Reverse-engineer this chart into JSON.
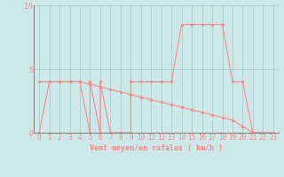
{
  "xlabel": "Vent moyen/en rafales ( km/h )",
  "xlim": [
    -0.5,
    23.5
  ],
  "ylim": [
    0,
    10
  ],
  "yticks": [
    0,
    5,
    10
  ],
  "xticks": [
    0,
    1,
    2,
    3,
    4,
    5,
    6,
    7,
    8,
    9,
    10,
    11,
    12,
    13,
    14,
    15,
    16,
    17,
    18,
    19,
    20,
    21,
    22,
    23
  ],
  "background_color": "#cce8e8",
  "line_color": "#ff8888",
  "grid_color": "#aacccc",
  "rafales_x": [
    0,
    1,
    2,
    3,
    4,
    5,
    5,
    6,
    6,
    7,
    8,
    9,
    9,
    10,
    11,
    12,
    13,
    14,
    15,
    16,
    17,
    18,
    19,
    20,
    21,
    22,
    23
  ],
  "rafales_y": [
    0,
    4,
    4,
    4,
    4,
    0,
    4,
    0,
    4,
    0,
    0,
    0,
    4,
    4,
    4,
    4,
    4,
    8.5,
    8.5,
    8.5,
    8.5,
    8.5,
    4,
    4,
    0,
    0,
    0
  ],
  "moyen_x": [
    0,
    1,
    2,
    3,
    4,
    5,
    6,
    7,
    8,
    9,
    10,
    11,
    12,
    13,
    14,
    15,
    16,
    17,
    18,
    19,
    20,
    21,
    22
  ],
  "moyen_y": [
    4,
    4,
    4,
    4,
    4,
    3.8,
    3.6,
    3.4,
    3.2,
    3.0,
    2.8,
    2.6,
    2.4,
    2.2,
    2.0,
    1.8,
    1.6,
    1.4,
    1.2,
    1.0,
    0.5,
    0,
    0
  ]
}
